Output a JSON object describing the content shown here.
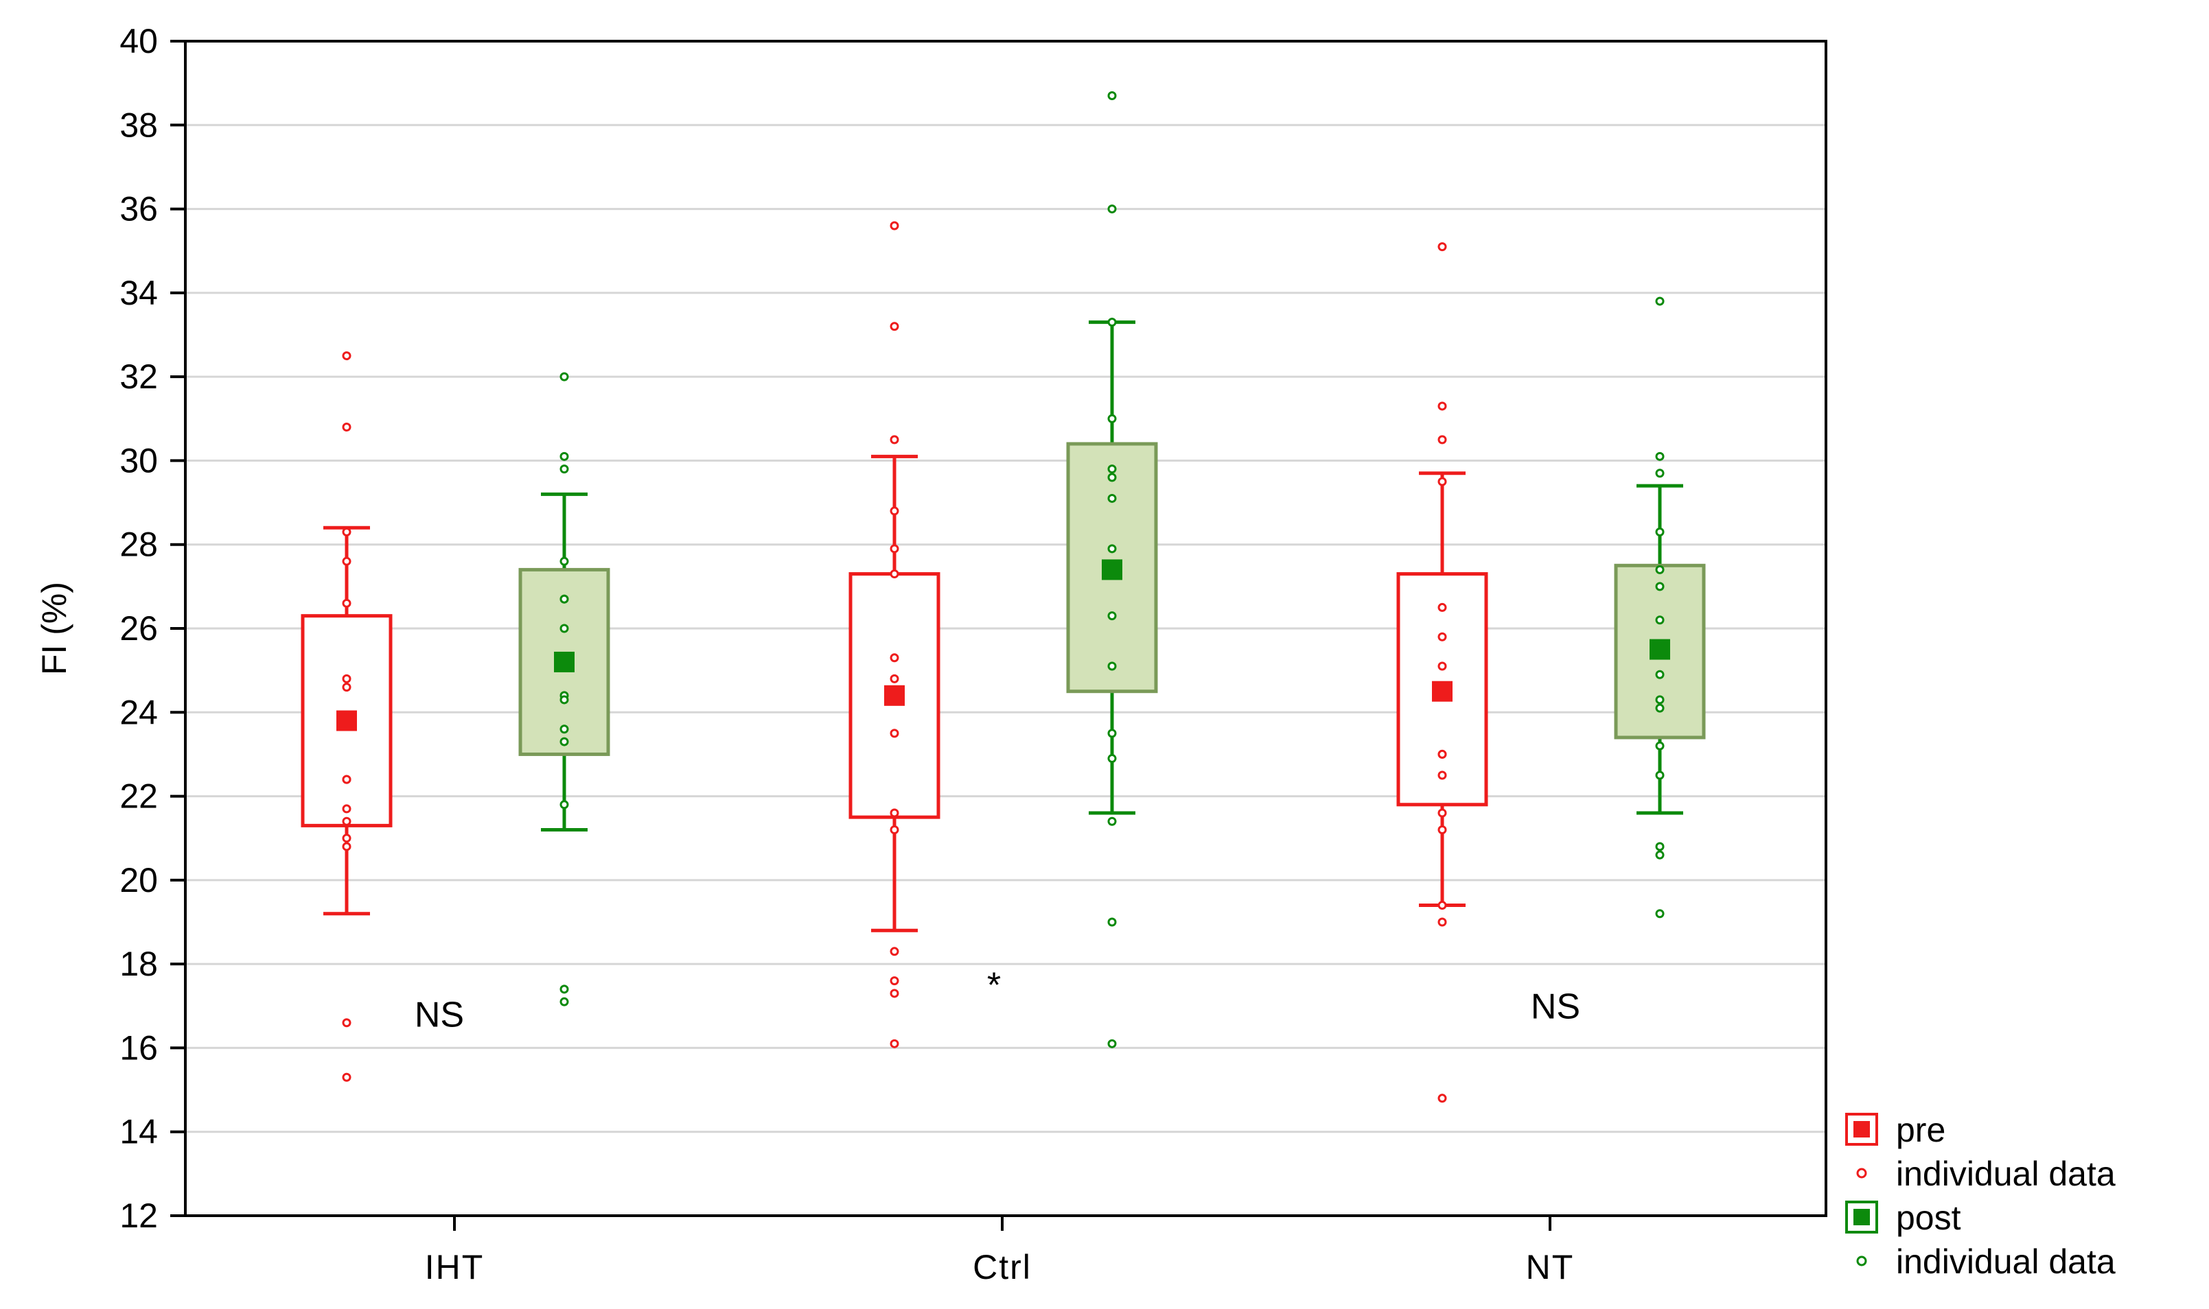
{
  "chart_data": {
    "type": "box",
    "title": "",
    "xlabel": "",
    "ylabel": "FI (%)",
    "ylim": [
      12,
      40
    ],
    "yticks": [
      12,
      14,
      16,
      18,
      20,
      22,
      24,
      26,
      28,
      30,
      32,
      34,
      36,
      38,
      40
    ],
    "grid": true,
    "categories": [
      "IHT",
      "Ctrl",
      "NT"
    ],
    "colors": {
      "pre": "#ee1c1c",
      "post": "#0c8a0c",
      "post_box_fill": "#d3e2b8",
      "post_box_stroke": "#7a9a58"
    },
    "series": [
      {
        "name": "pre",
        "boxes": [
          {
            "category": "IHT",
            "mean": 23.8,
            "q1": 21.3,
            "q3": 26.3,
            "whisker_low": 19.2,
            "whisker_high": 28.4,
            "points": [
              32.5,
              30.8,
              28.3,
              27.6,
              26.6,
              24.8,
              24.6,
              22.4,
              22.4,
              21.7,
              21.4,
              21.0,
              20.8,
              16.6,
              15.3
            ]
          },
          {
            "category": "Ctrl",
            "mean": 24.4,
            "q1": 21.5,
            "q3": 27.3,
            "whisker_low": 18.8,
            "whisker_high": 30.1,
            "points": [
              35.6,
              33.2,
              30.5,
              28.8,
              27.9,
              27.3,
              25.3,
              24.8,
              23.5,
              21.6,
              21.2,
              18.3,
              17.6,
              17.3,
              16.1
            ]
          },
          {
            "category": "NT",
            "mean": 24.5,
            "q1": 21.8,
            "q3": 27.3,
            "whisker_low": 19.4,
            "whisker_high": 29.7,
            "points": [
              35.1,
              31.3,
              30.5,
              29.5,
              26.5,
              25.8,
              25.1,
              23.0,
              23.0,
              22.5,
              21.6,
              21.2,
              19.4,
              19.0,
              14.8
            ]
          }
        ]
      },
      {
        "name": "post",
        "boxes": [
          {
            "category": "IHT",
            "mean": 25.2,
            "q1": 23.0,
            "q3": 27.4,
            "whisker_low": 21.2,
            "whisker_high": 29.2,
            "points": [
              32.0,
              30.1,
              29.8,
              27.6,
              26.7,
              26.7,
              26.0,
              25.3,
              24.4,
              24.3,
              23.6,
              23.3,
              21.8,
              17.4,
              17.1
            ]
          },
          {
            "category": "Ctrl",
            "mean": 27.4,
            "q1": 24.5,
            "q3": 30.4,
            "whisker_low": 21.6,
            "whisker_high": 33.3,
            "points": [
              38.7,
              36.0,
              33.3,
              31.0,
              29.8,
              29.6,
              29.1,
              27.9,
              26.3,
              25.1,
              23.5,
              22.9,
              21.4,
              19.0,
              16.1
            ]
          },
          {
            "category": "NT",
            "mean": 25.5,
            "q1": 23.4,
            "q3": 27.5,
            "whisker_low": 21.6,
            "whisker_high": 29.4,
            "points": [
              33.8,
              30.1,
              29.7,
              28.3,
              27.4,
              27.0,
              26.2,
              25.6,
              24.9,
              24.3,
              24.1,
              23.2,
              22.5,
              20.8,
              20.6,
              19.2
            ]
          }
        ]
      }
    ],
    "annotations": [
      {
        "text": "NS",
        "category": "IHT",
        "y": 16.8
      },
      {
        "text": "*",
        "category": "Ctrl",
        "y": 17.5
      },
      {
        "text": "NS",
        "category": "NT",
        "y": 17.0
      }
    ],
    "legend": {
      "position": "bottom-right-outside",
      "entries": [
        {
          "label": "pre",
          "marker": "square",
          "series": "pre"
        },
        {
          "label": "individual data",
          "marker": "dot",
          "series": "pre"
        },
        {
          "label": "post",
          "marker": "square",
          "series": "post"
        },
        {
          "label": "individual data",
          "marker": "dot",
          "series": "post"
        }
      ]
    }
  }
}
